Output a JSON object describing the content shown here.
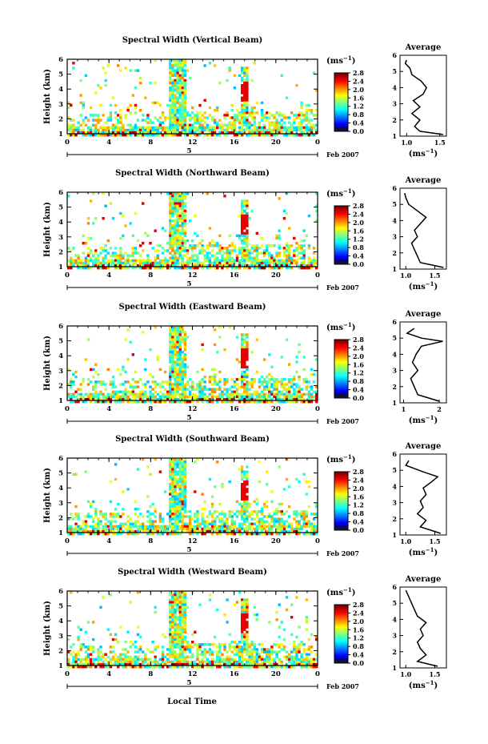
{
  "figure": {
    "xlabel": "Local Time",
    "date_label": "Feb 2007",
    "day_label": "5",
    "ylabel": "Height (km)",
    "colorbar_unit": "(ms",
    "colorbar_exp": "−1",
    "avg_title": "Average",
    "avg_xlabel_unit": "(ms",
    "avg_xlabel_exp": "−1",
    "avg_xlabel_close": ")"
  },
  "chart_data": [
    {
      "type": "heatmap",
      "title": "Spectral Width (Vertical Beam)",
      "x_ticks": [
        "0",
        "4",
        "8",
        "12",
        "16",
        "20",
        "0"
      ],
      "xlim": [
        0,
        24
      ],
      "ylim": [
        1,
        6
      ],
      "y_ticks": [
        "1",
        "2",
        "3",
        "4",
        "5",
        "6"
      ],
      "colorbar": {
        "ticks": [
          "0.0",
          "0.4",
          "0.8",
          "1.2",
          "1.6",
          "2.0",
          "2.4",
          "2.8"
        ],
        "range": [
          0,
          2.8
        ]
      },
      "average": {
        "title": "Average",
        "x_ticks": [
          "1.0",
          "1.5"
        ],
        "xlim": [
          0.9,
          1.6
        ],
        "heights": [
          1.1,
          1.3,
          1.6,
          2.0,
          2.4,
          2.8,
          3.2,
          3.6,
          4.0,
          4.4,
          4.8,
          5.2,
          5.5,
          5.7
        ],
        "values": [
          1.55,
          1.2,
          1.12,
          1.2,
          1.08,
          1.2,
          1.1,
          1.25,
          1.3,
          1.22,
          1.08,
          1.05,
          0.98,
          1.0
        ]
      }
    },
    {
      "type": "heatmap",
      "title": "Spectral Width (Northward Beam)",
      "x_ticks": [
        "0",
        "4",
        "8",
        "12",
        "16",
        "20",
        "0"
      ],
      "xlim": [
        0,
        24
      ],
      "ylim": [
        1,
        6
      ],
      "y_ticks": [
        "1",
        "2",
        "3",
        "4",
        "5",
        "6"
      ],
      "colorbar": {
        "ticks": [
          "0.0",
          "0.4",
          "0.8",
          "1.2",
          "1.6",
          "2.0",
          "2.4",
          "2.8"
        ],
        "range": [
          0,
          2.8
        ]
      },
      "average": {
        "title": "Average",
        "x_ticks": [
          "1.0",
          "1.5"
        ],
        "xlim": [
          0.9,
          1.7
        ],
        "heights": [
          1.1,
          1.4,
          1.8,
          2.2,
          2.6,
          3.0,
          3.4,
          3.8,
          4.2,
          4.6,
          5.0,
          5.4,
          5.7
        ],
        "values": [
          1.65,
          1.25,
          1.2,
          1.15,
          1.1,
          1.2,
          1.15,
          1.25,
          1.35,
          1.2,
          1.05,
          1.0,
          0.98
        ]
      }
    },
    {
      "type": "heatmap",
      "title": "Spectral Width (Eastward Beam)",
      "x_ticks": [
        "0",
        "4",
        "8",
        "12",
        "16",
        "20",
        "0"
      ],
      "xlim": [
        0,
        24
      ],
      "ylim": [
        1,
        6
      ],
      "y_ticks": [
        "1",
        "2",
        "3",
        "4",
        "5",
        "6"
      ],
      "colorbar": {
        "ticks": [
          "0.0",
          "0.4",
          "0.8",
          "1.2",
          "1.6",
          "2.0",
          "2.4",
          "2.8"
        ],
        "range": [
          0,
          2.8
        ]
      },
      "average": {
        "title": "Average",
        "x_ticks": [
          "1",
          "2"
        ],
        "xlim": [
          0.9,
          2.2
        ],
        "heights": [
          1.1,
          1.5,
          2.0,
          2.5,
          3.0,
          3.5,
          4.0,
          4.5,
          4.8,
          5.0,
          5.3,
          5.6
        ],
        "values": [
          2.0,
          1.4,
          1.3,
          1.2,
          1.4,
          1.25,
          1.35,
          1.5,
          2.1,
          1.5,
          1.1,
          1.3
        ]
      }
    },
    {
      "type": "heatmap",
      "title": "Spectral Width (Southward Beam)",
      "x_ticks": [
        "0",
        "4",
        "8",
        "12",
        "16",
        "20",
        "0"
      ],
      "xlim": [
        0,
        24
      ],
      "ylim": [
        1,
        6
      ],
      "y_ticks": [
        "1",
        "2",
        "3",
        "4",
        "5",
        "6"
      ],
      "colorbar": {
        "ticks": [
          "0.0",
          "0.4",
          "0.8",
          "1.2",
          "1.6",
          "2.0",
          "2.4",
          "2.8"
        ],
        "range": [
          0,
          2.8
        ]
      },
      "average": {
        "title": "Average",
        "x_ticks": [
          "1.0",
          "1.5"
        ],
        "xlim": [
          0.9,
          1.7
        ],
        "heights": [
          1.1,
          1.5,
          1.9,
          2.3,
          2.7,
          3.1,
          3.5,
          3.9,
          4.3,
          4.6,
          4.9,
          5.3,
          5.6
        ],
        "values": [
          1.6,
          1.25,
          1.35,
          1.2,
          1.3,
          1.25,
          1.35,
          1.3,
          1.45,
          1.55,
          1.3,
          1.0,
          1.05
        ]
      }
    },
    {
      "type": "heatmap",
      "title": "Spectral Width (Westward Beam)",
      "x_ticks": [
        "0",
        "4",
        "8",
        "12",
        "16",
        "20",
        "0"
      ],
      "xlim": [
        0,
        24
      ],
      "ylim": [
        1,
        6
      ],
      "y_ticks": [
        "1",
        "2",
        "3",
        "4",
        "5",
        "6"
      ],
      "colorbar": {
        "ticks": [
          "0.0",
          "0.4",
          "0.8",
          "1.2",
          "1.6",
          "2.0",
          "2.4",
          "2.8"
        ],
        "range": [
          0,
          2.8
        ]
      },
      "average": {
        "title": "Average",
        "x_ticks": [
          "1.0",
          "1.5"
        ],
        "xlim": [
          0.9,
          1.7
        ],
        "heights": [
          1.1,
          1.4,
          1.8,
          2.2,
          2.6,
          3.0,
          3.4,
          3.8,
          4.2,
          4.6,
          5.0,
          5.4,
          5.8
        ],
        "values": [
          1.55,
          1.2,
          1.35,
          1.25,
          1.2,
          1.3,
          1.25,
          1.35,
          1.2,
          1.15,
          1.1,
          1.05,
          1.0
        ]
      }
    }
  ]
}
